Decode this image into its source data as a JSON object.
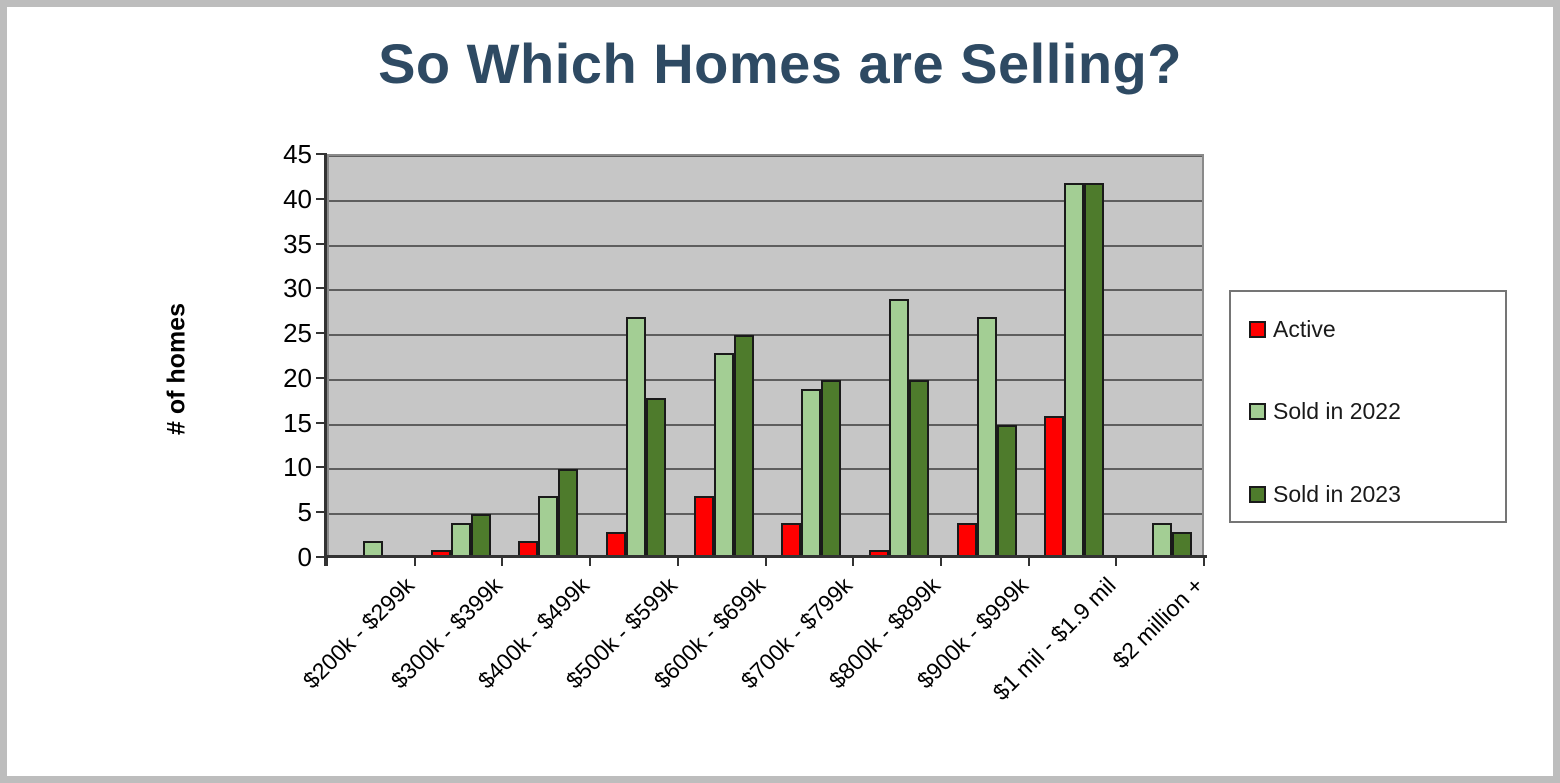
{
  "page": {
    "background": "#FFFFFF",
    "border_color": "#BDBDBD"
  },
  "chart_data": {
    "type": "bar",
    "title": "So Which Homes are Selling?",
    "title_color": "#2E4A63",
    "xlabel": "",
    "ylabel": "# of homes",
    "ylim": [
      0,
      45
    ],
    "ytick_step": 5,
    "grid": true,
    "plot_background": "#C6C6C6",
    "gridline_color": "#5E5E5E",
    "legend_position": "right",
    "categories": [
      "$200k - $299k",
      "$300k - $399k",
      "$400k - $499k",
      "$500k - $599k",
      "$600k - $699k",
      "$700k - $799k",
      "$800k - $899k",
      "$900k - $999k",
      "$1 mil - $1.9 mil",
      "$2 million +"
    ],
    "series": [
      {
        "name": "Active",
        "color": "#FF0000",
        "values": [
          0,
          1,
          2,
          3,
          7,
          4,
          1,
          4,
          16,
          0
        ]
      },
      {
        "name": "Sold in 2022",
        "color": "#A3CE94",
        "values": [
          2,
          4,
          7,
          27,
          23,
          19,
          29,
          27,
          42,
          4
        ]
      },
      {
        "name": "Sold in 2023",
        "color": "#4E7B2C",
        "values": [
          0,
          5,
          10,
          18,
          25,
          20,
          20,
          15,
          42,
          3
        ]
      }
    ]
  }
}
